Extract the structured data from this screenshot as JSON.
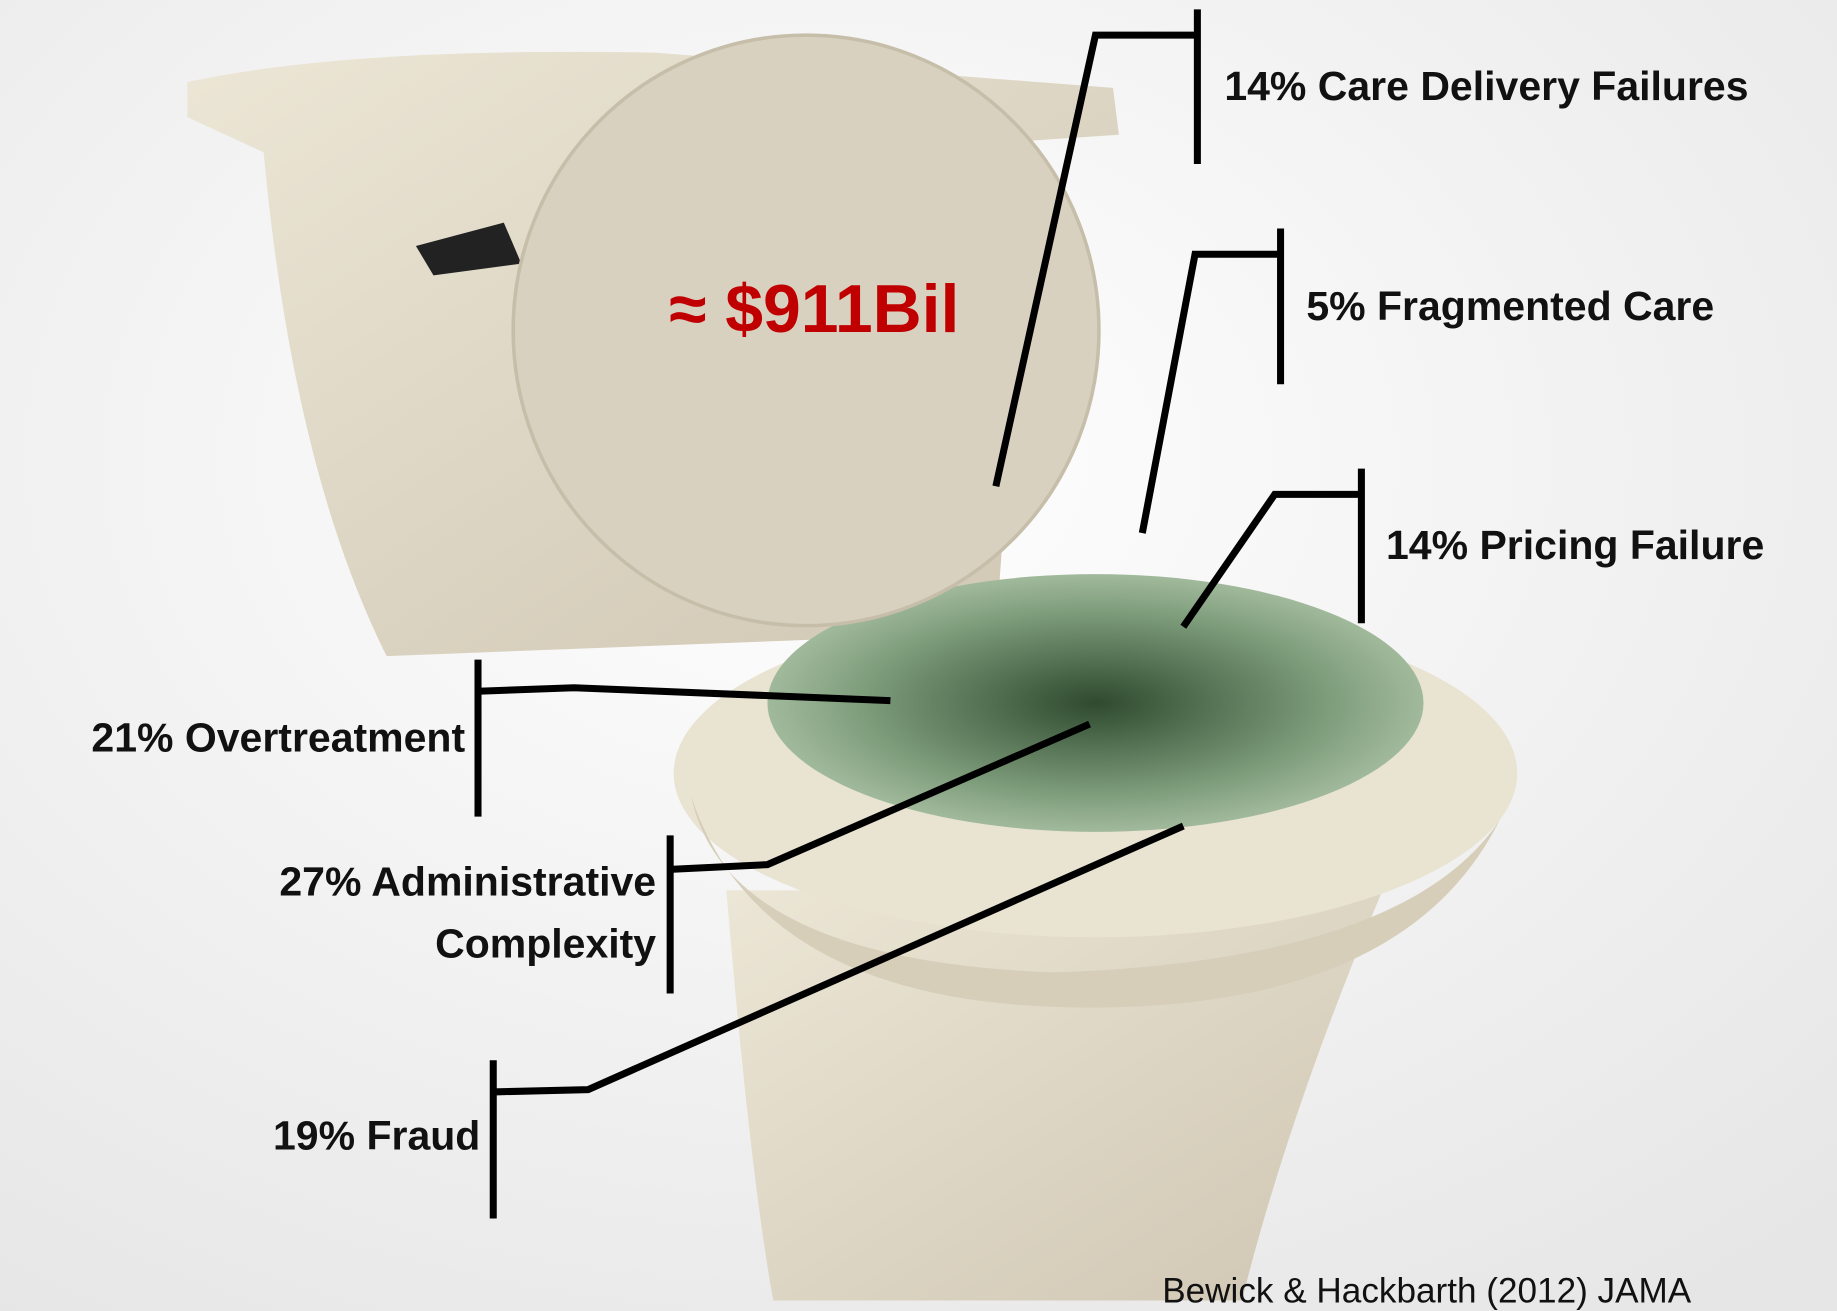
{
  "total": "≈ $911Bil",
  "categories": [
    {
      "lines": [
        "14% Care Delivery Failures"
      ]
    },
    {
      "lines": [
        "5% Fragmented Care"
      ]
    },
    {
      "lines": [
        "14% Pricing Failure"
      ]
    },
    {
      "lines": [
        "21% Overtreatment"
      ]
    },
    {
      "lines": [
        "27% Administrative",
        "Complexity"
      ]
    },
    {
      "lines": [
        "19% Fraud"
      ]
    }
  ],
  "citation": "Bewick & Hackbarth (2012) JAMA"
}
